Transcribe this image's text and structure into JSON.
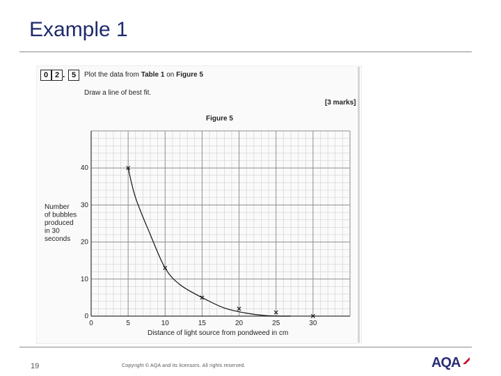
{
  "slide": {
    "title": "Example 1",
    "number": "19",
    "copyright": "Copyright © AQA and its licensors. All rights reserved.",
    "logo": "AQA",
    "accent_color": "#1f2a6d",
    "logo_mark_color": "#c8102e"
  },
  "question": {
    "boxes": [
      "0",
      "2",
      "5"
    ],
    "separator": ".",
    "instruction_prefix": "Plot the data from ",
    "table_ref": "Table 1",
    "instruction_mid": " on ",
    "figure_ref": "Figure 5",
    "line2": "Draw a line of best fit.",
    "marks": "[3 marks]",
    "figure_label": "Figure 5"
  },
  "chart_data": {
    "type": "scatter",
    "xlabel": "Distance of light source from pondweed in cm",
    "ylabel_lines": [
      "Number",
      "of bubbles",
      "produced",
      "in 30",
      "seconds"
    ],
    "xlim": [
      0,
      35
    ],
    "ylim": [
      0,
      50
    ],
    "x_ticks": [
      0,
      5,
      10,
      15,
      20,
      25,
      30
    ],
    "y_ticks": [
      0,
      10,
      20,
      30,
      40
    ],
    "grid": true,
    "points": [
      {
        "x": 5,
        "y": 40
      },
      {
        "x": 10,
        "y": 13
      },
      {
        "x": 15,
        "y": 5
      },
      {
        "x": 20,
        "y": 2
      },
      {
        "x": 25,
        "y": 1
      },
      {
        "x": 30,
        "y": 0
      }
    ],
    "best_fit_curve": [
      {
        "x": 5,
        "y": 40
      },
      {
        "x": 6,
        "y": 32
      },
      {
        "x": 8,
        "y": 22
      },
      {
        "x": 10,
        "y": 13
      },
      {
        "x": 12,
        "y": 8.5
      },
      {
        "x": 15,
        "y": 5
      },
      {
        "x": 18,
        "y": 2.2
      },
      {
        "x": 21,
        "y": 0.8
      },
      {
        "x": 24,
        "y": 0.1
      },
      {
        "x": 27,
        "y": 0
      }
    ]
  }
}
